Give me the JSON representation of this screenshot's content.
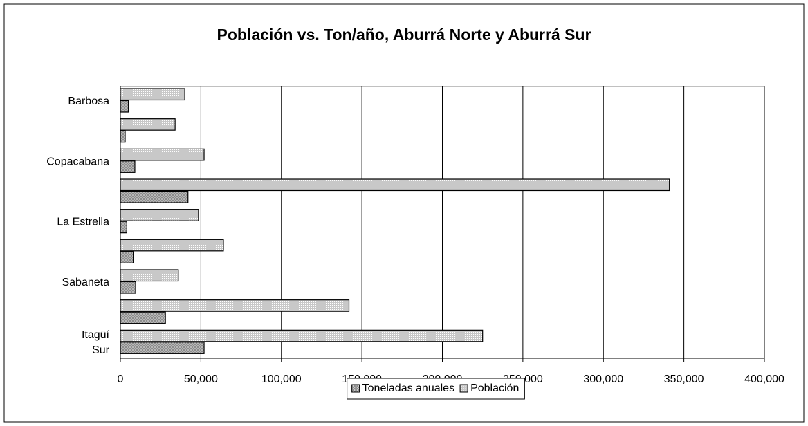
{
  "chart_data": {
    "type": "bar",
    "orientation": "horizontal",
    "title": "Población vs. Ton/año, Aburrá Norte y Aburrá Sur",
    "categories": [
      "Barbosa",
      null,
      "Copacabana",
      null,
      "La Estrella",
      null,
      "Sabaneta",
      null,
      "Itagüí Sur"
    ],
    "series": [
      {
        "name": "Toneladas anuales",
        "color": "#8c8c8c",
        "values": [
          5000,
          3000,
          9000,
          42000,
          4000,
          8000,
          9500,
          28000,
          52000
        ]
      },
      {
        "name": "Población",
        "color": "#c8c8c8",
        "values": [
          40000,
          34000,
          52000,
          341000,
          48500,
          64000,
          36000,
          142000,
          225000
        ]
      }
    ],
    "xlim": [
      0,
      400000
    ],
    "xticks": [
      0,
      {
        "value": 50000,
        "label": "50,000"
      },
      {
        "value": 100000,
        "label": "100,000"
      },
      {
        "value": 150000,
        "label": "150,000"
      },
      {
        "value": 200000,
        "label": "200,000"
      },
      {
        "value": 250000,
        "label": "250,000"
      },
      {
        "value": 300000,
        "label": "300,000"
      },
      {
        "value": 350000,
        "label": "350,000"
      },
      {
        "value": 400000,
        "label": "400,000"
      }
    ],
    "grid": true,
    "legend": "bottom"
  }
}
